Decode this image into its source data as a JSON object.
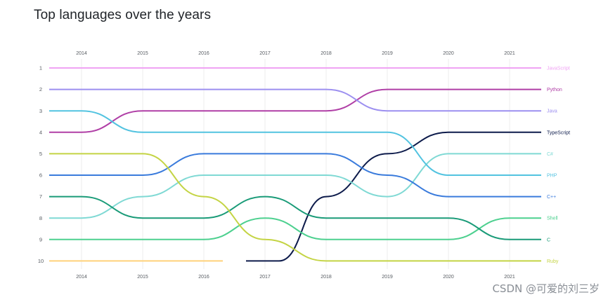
{
  "chart_data": {
    "type": "bump",
    "title": "Top languages over the years",
    "x": [
      "2014",
      "2015",
      "2016",
      "2017",
      "2018",
      "2019",
      "2020",
      "2021"
    ],
    "ranks": [
      1,
      2,
      3,
      4,
      5,
      6,
      7,
      8,
      9,
      10
    ],
    "xlabel": "",
    "ylabel": "",
    "grid": true,
    "series": [
      {
        "name": "JavaScript",
        "color": "#f0a3f4",
        "values": [
          1,
          1,
          1,
          1,
          1,
          1,
          1,
          1
        ]
      },
      {
        "name": "Python",
        "color": "#b03fa6",
        "values": [
          4,
          3,
          3,
          3,
          3,
          2,
          2,
          2
        ]
      },
      {
        "name": "Java",
        "color": "#9c8ff0",
        "values": [
          2,
          2,
          2,
          2,
          2,
          3,
          3,
          3
        ]
      },
      {
        "name": "TypeScript",
        "color": "#0d1b4b",
        "values": [
          null,
          null,
          null,
          10,
          7,
          5,
          4,
          4
        ]
      },
      {
        "name": "C#",
        "color": "#7fd9d4",
        "values": [
          8,
          7,
          6,
          6,
          6,
          7,
          5,
          5
        ]
      },
      {
        "name": "PHP",
        "color": "#52c3e0",
        "values": [
          3,
          4,
          4,
          4,
          4,
          4,
          6,
          6
        ]
      },
      {
        "name": "C++",
        "color": "#3a7bdc",
        "values": [
          6,
          6,
          5,
          5,
          5,
          6,
          7,
          7
        ]
      },
      {
        "name": "Shell",
        "color": "#4dd08f",
        "values": [
          9,
          9,
          9,
          8,
          9,
          9,
          9,
          8
        ]
      },
      {
        "name": "C",
        "color": "#1a9b78",
        "values": [
          7,
          8,
          8,
          7,
          8,
          8,
          8,
          9
        ]
      },
      {
        "name": "Ruby",
        "color": "#c4d444",
        "values": [
          5,
          5,
          7,
          9,
          10,
          10,
          10,
          10
        ]
      }
    ],
    "partial_segments": [
      {
        "series": "Ruby",
        "note": "line starts at left edge"
      },
      {
        "series": "Unlabeled (rank 10, 2014-2016)",
        "color": "#ffd27a",
        "values": [
          10,
          10,
          10
        ]
      }
    ]
  },
  "watermark": "CSDN @可爱的刘三岁"
}
